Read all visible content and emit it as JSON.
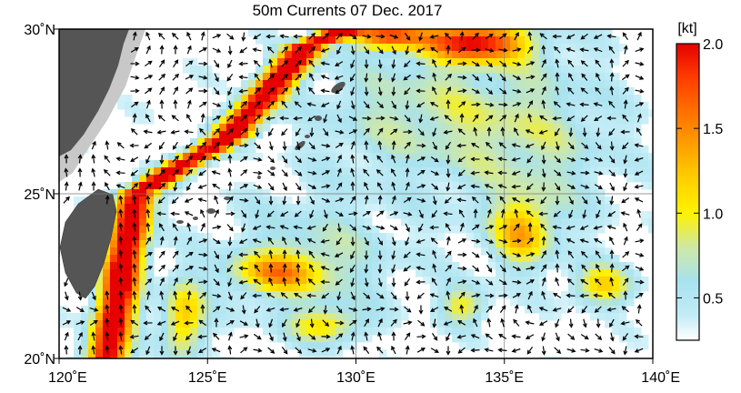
{
  "title": "50m Currents  07 Dec. 2017",
  "map": {
    "lon_range": [
      120,
      140
    ],
    "lat_range": [
      20,
      30
    ],
    "x_ticks": [
      {
        "value": 120,
        "label": "120˚E"
      },
      {
        "value": 125,
        "label": "125˚E"
      },
      {
        "value": 130,
        "label": "130˚E"
      },
      {
        "value": 135,
        "label": "135˚E"
      },
      {
        "value": 140,
        "label": "140˚E"
      }
    ],
    "y_ticks": [
      {
        "value": 30,
        "label": "30˚N"
      },
      {
        "value": 25,
        "label": "25˚N"
      },
      {
        "value": 20,
        "label": "20˚N"
      }
    ],
    "grid": true,
    "land_color": "#555555",
    "shelf_color": "#c8c8c8"
  },
  "colorbar": {
    "unit_label": "[kt]",
    "min": 0.25,
    "max": 2.0,
    "ticks": [
      {
        "value": 2.0,
        "label": "2.0"
      },
      {
        "value": 1.5,
        "label": "1.5"
      },
      {
        "value": 1.0,
        "label": "1.0"
      },
      {
        "value": 0.5,
        "label": "0.5"
      }
    ],
    "stops": [
      {
        "value": 0.25,
        "color": "#ffffff"
      },
      {
        "value": 0.4,
        "color": "#c2ecf6"
      },
      {
        "value": 0.6,
        "color": "#a8e2ef"
      },
      {
        "value": 0.8,
        "color": "#cfe8a4"
      },
      {
        "value": 1.0,
        "color": "#fff200"
      },
      {
        "value": 1.2,
        "color": "#ffd000"
      },
      {
        "value": 1.4,
        "color": "#ffa000"
      },
      {
        "value": 1.6,
        "color": "#ff7000"
      },
      {
        "value": 1.8,
        "color": "#ff3c00"
      },
      {
        "value": 2.0,
        "color": "#e60000"
      }
    ]
  }
}
